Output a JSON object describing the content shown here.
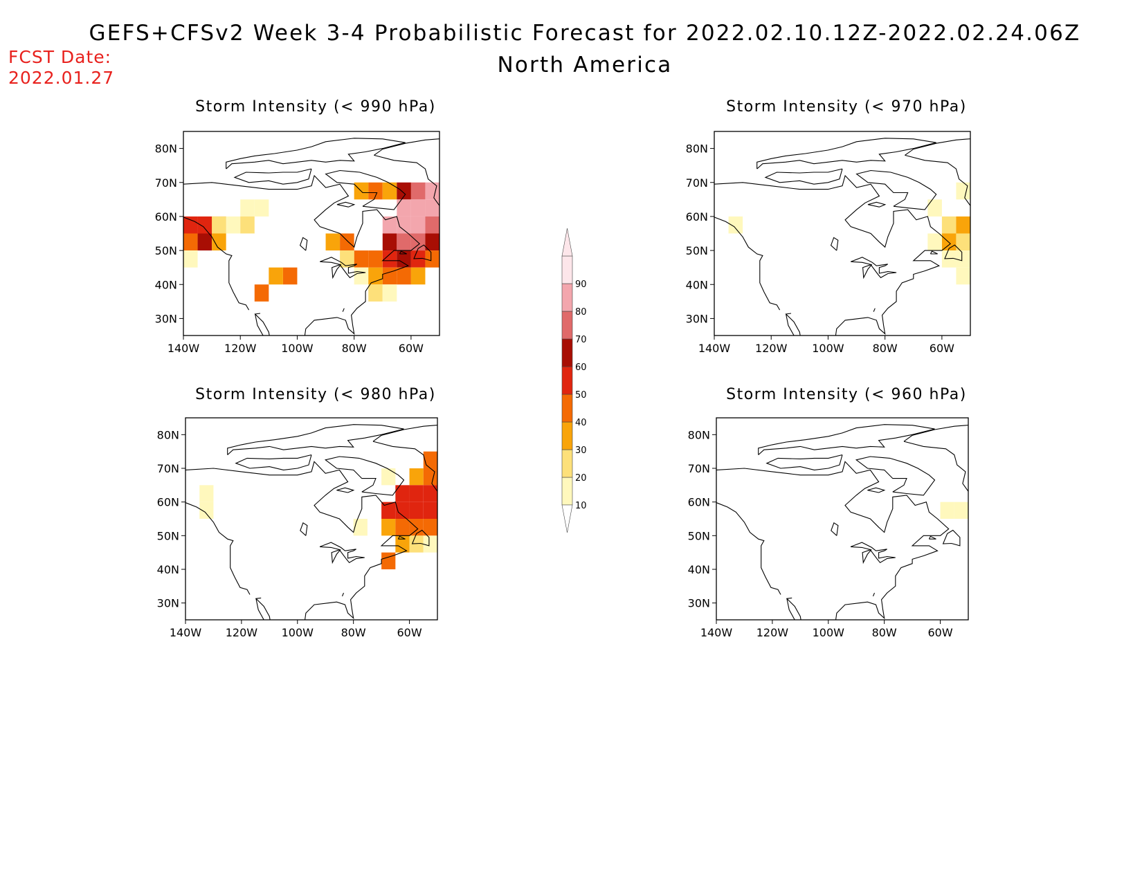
{
  "header": {
    "title": "GEFS+CFSv2 Week 3-4 Probabilistic Forecast for 2022.02.10.12Z-2022.02.24.06Z",
    "subtitle": "North America",
    "fcst_label": "FCST Date:",
    "fcst_date": "2022.01.27"
  },
  "map_extent": {
    "lon": [
      -140,
      -50
    ],
    "lat": [
      25,
      85
    ]
  },
  "lat_ticks": [
    {
      "value": 80,
      "label": "80N"
    },
    {
      "value": 70,
      "label": "70N"
    },
    {
      "value": 60,
      "label": "60N"
    },
    {
      "value": 50,
      "label": "50N"
    },
    {
      "value": 40,
      "label": "40N"
    },
    {
      "value": 30,
      "label": "30N"
    }
  ],
  "lon_ticks": [
    {
      "value": -140,
      "label": "140W"
    },
    {
      "value": -120,
      "label": "120W"
    },
    {
      "value": -100,
      "label": "100W"
    },
    {
      "value": -80,
      "label": "80W"
    },
    {
      "value": -60,
      "label": "60W"
    }
  ],
  "colorbar": {
    "levels": [
      10,
      20,
      30,
      40,
      50,
      60,
      70,
      80,
      90
    ],
    "colors": [
      "#fff8bd",
      "#fde07a",
      "#f9a40a",
      "#f46a04",
      "#e0250f",
      "#a80e04",
      "#e06a6a",
      "#f3a6ad",
      "#fde6ea"
    ]
  },
  "panels": [
    {
      "title": "Storm Intensity (< 990 hPa)",
      "cells": [
        {
          "lon": -140,
          "lat": 55,
          "value": 55
        },
        {
          "lon": -135,
          "lat": 55,
          "value": 55
        },
        {
          "lon": -130,
          "lat": 55,
          "value": 45
        },
        {
          "lon": -140,
          "lat": 50,
          "value": 45
        },
        {
          "lon": -135,
          "lat": 50,
          "value": 60
        },
        {
          "lon": -130,
          "lat": 50,
          "value": 35
        },
        {
          "lon": -130,
          "lat": 55,
          "value": 25
        },
        {
          "lon": -125,
          "lat": 55,
          "value": 15
        },
        {
          "lon": -120,
          "lat": 60,
          "value": 12
        },
        {
          "lon": -115,
          "lat": 60,
          "value": 12
        },
        {
          "lon": -120,
          "lat": 55,
          "value": 25
        },
        {
          "lon": -140,
          "lat": 45,
          "value": 12
        },
        {
          "lon": -90,
          "lat": 50,
          "value": 35
        },
        {
          "lon": -85,
          "lat": 50,
          "value": 45
        },
        {
          "lon": -80,
          "lat": 45,
          "value": 45
        },
        {
          "lon": -85,
          "lat": 45,
          "value": 25
        },
        {
          "lon": -80,
          "lat": 40,
          "value": 12
        },
        {
          "lon": -105,
          "lat": 40,
          "value": 40
        },
        {
          "lon": -110,
          "lat": 40,
          "value": 30
        },
        {
          "lon": -115,
          "lat": 35,
          "value": 40
        },
        {
          "lon": -80,
          "lat": 65,
          "value": 30
        },
        {
          "lon": -75,
          "lat": 65,
          "value": 45
        },
        {
          "lon": -70,
          "lat": 65,
          "value": 35
        },
        {
          "lon": -65,
          "lat": 65,
          "value": 60
        },
        {
          "lon": -60,
          "lat": 65,
          "value": 75
        },
        {
          "lon": -55,
          "lat": 65,
          "value": 80
        },
        {
          "lon": -65,
          "lat": 60,
          "value": 80
        },
        {
          "lon": -60,
          "lat": 60,
          "value": 85
        },
        {
          "lon": -55,
          "lat": 60,
          "value": 85
        },
        {
          "lon": -70,
          "lat": 55,
          "value": 80
        },
        {
          "lon": -65,
          "lat": 55,
          "value": 85
        },
        {
          "lon": -60,
          "lat": 55,
          "value": 85
        },
        {
          "lon": -55,
          "lat": 55,
          "value": 75
        },
        {
          "lon": -70,
          "lat": 50,
          "value": 65
        },
        {
          "lon": -65,
          "lat": 50,
          "value": 70
        },
        {
          "lon": -60,
          "lat": 50,
          "value": 75
        },
        {
          "lon": -55,
          "lat": 50,
          "value": 65
        },
        {
          "lon": -70,
          "lat": 45,
          "value": 55
        },
        {
          "lon": -65,
          "lat": 45,
          "value": 60
        },
        {
          "lon": -60,
          "lat": 45,
          "value": 55
        },
        {
          "lon": -55,
          "lat": 45,
          "value": 45
        },
        {
          "lon": -75,
          "lat": 40,
          "value": 35
        },
        {
          "lon": -70,
          "lat": 40,
          "value": 45
        },
        {
          "lon": -65,
          "lat": 40,
          "value": 45
        },
        {
          "lon": -60,
          "lat": 40,
          "value": 30
        },
        {
          "lon": -75,
          "lat": 35,
          "value": 25
        },
        {
          "lon": -70,
          "lat": 35,
          "value": 15
        },
        {
          "lon": -75,
          "lat": 45,
          "value": 40
        }
      ]
    },
    {
      "title": "Storm Intensity (< 970 hPa)",
      "cells": [
        {
          "lon": -55,
          "lat": 65,
          "value": 15
        },
        {
          "lon": -50,
          "lat": 65,
          "value": 15
        },
        {
          "lon": -60,
          "lat": 55,
          "value": 25
        },
        {
          "lon": -55,
          "lat": 55,
          "value": 30
        },
        {
          "lon": -60,
          "lat": 50,
          "value": 30
        },
        {
          "lon": -55,
          "lat": 50,
          "value": 25
        },
        {
          "lon": -65,
          "lat": 50,
          "value": 15
        },
        {
          "lon": -60,
          "lat": 45,
          "value": 15
        },
        {
          "lon": -55,
          "lat": 45,
          "value": 15
        },
        {
          "lon": -55,
          "lat": 40,
          "value": 12
        },
        {
          "lon": -135,
          "lat": 55,
          "value": 15
        },
        {
          "lon": -65,
          "lat": 60,
          "value": 12
        }
      ]
    },
    {
      "title": "Storm Intensity (< 980 hPa)",
      "cells": [
        {
          "lon": -55,
          "lat": 70,
          "value": 45
        },
        {
          "lon": -50,
          "lat": 65,
          "value": 55
        },
        {
          "lon": -60,
          "lat": 65,
          "value": 35
        },
        {
          "lon": -55,
          "lat": 65,
          "value": 45
        },
        {
          "lon": -65,
          "lat": 60,
          "value": 55
        },
        {
          "lon": -60,
          "lat": 60,
          "value": 55
        },
        {
          "lon": -55,
          "lat": 60,
          "value": 55
        },
        {
          "lon": -70,
          "lat": 55,
          "value": 55
        },
        {
          "lon": -65,
          "lat": 55,
          "value": 50
        },
        {
          "lon": -60,
          "lat": 55,
          "value": 55
        },
        {
          "lon": -55,
          "lat": 55,
          "value": 55
        },
        {
          "lon": -70,
          "lat": 50,
          "value": 35
        },
        {
          "lon": -65,
          "lat": 50,
          "value": 45
        },
        {
          "lon": -60,
          "lat": 50,
          "value": 45
        },
        {
          "lon": -55,
          "lat": 50,
          "value": 40
        },
        {
          "lon": -65,
          "lat": 45,
          "value": 30
        },
        {
          "lon": -60,
          "lat": 45,
          "value": 25
        },
        {
          "lon": -55,
          "lat": 45,
          "value": 15
        },
        {
          "lon": -70,
          "lat": 40,
          "value": 40
        },
        {
          "lon": -80,
          "lat": 50,
          "value": 15
        },
        {
          "lon": -70,
          "lat": 65,
          "value": 15
        },
        {
          "lon": -135,
          "lat": 55,
          "value": 15
        },
        {
          "lon": -135,
          "lat": 60,
          "value": 12
        }
      ]
    },
    {
      "title": "Storm Intensity (< 960 hPa)",
      "cells": [
        {
          "lon": -55,
          "lat": 55,
          "value": 15
        },
        {
          "lon": -60,
          "lat": 55,
          "value": 12
        }
      ]
    }
  ]
}
